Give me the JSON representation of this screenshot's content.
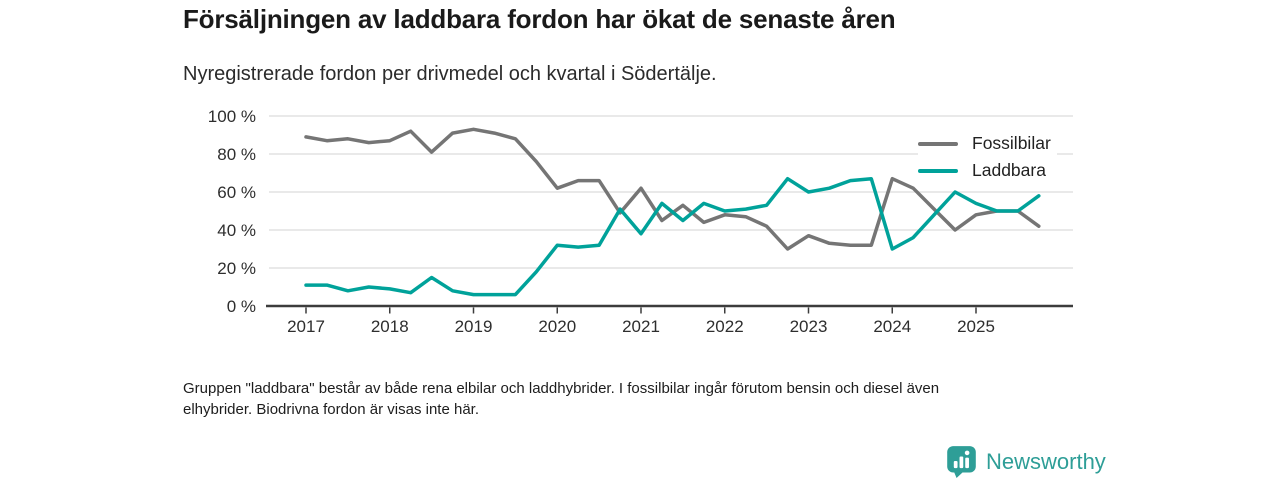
{
  "page": {
    "title": "Försäljningen av laddbara fordon har ökat de senaste åren",
    "subtitle": "Nyregistrerade fordon per drivmedel och kvartal i Södertälje.",
    "footnote_line1": "Gruppen \"laddbara\" består av både rena elbilar och laddhybrider. I fossilbilar ingår förutom bensin och diesel även",
    "footnote_line2": "elhybrider. Biodrivna fordon är visas inte här.",
    "brand": "Newsworthy"
  },
  "colors": {
    "fossil": "#757575",
    "laddbara": "#00a29a",
    "axis": "#3c3c3c",
    "grid": "#dcdcdc",
    "brand": "#2e9e97",
    "text": "#2e2e2e"
  },
  "chart_data": {
    "type": "line",
    "title": "Försäljningen av laddbara fordon har ökat de senaste åren",
    "subtitle": "Nyregistrerade fordon per drivmedel och kvartal i Södertälje.",
    "x_unit": "quarter",
    "x": [
      "2017-Q1",
      "2017-Q2",
      "2017-Q3",
      "2017-Q4",
      "2018-Q1",
      "2018-Q2",
      "2018-Q3",
      "2018-Q4",
      "2019-Q1",
      "2019-Q2",
      "2019-Q3",
      "2019-Q4",
      "2020-Q1",
      "2020-Q2",
      "2020-Q3",
      "2020-Q4",
      "2021-Q1",
      "2021-Q2",
      "2021-Q3",
      "2021-Q4",
      "2022-Q1",
      "2022-Q2",
      "2022-Q3",
      "2022-Q4",
      "2023-Q1",
      "2023-Q2",
      "2023-Q3",
      "2023-Q4",
      "2024-Q1",
      "2024-Q2",
      "2024-Q3",
      "2024-Q4",
      "2025-Q1",
      "2025-Q2",
      "2025-Q3",
      "2025-Q4"
    ],
    "x_tick_labels": [
      "2017",
      "2018",
      "2019",
      "2020",
      "2021",
      "2022",
      "2023",
      "2024",
      "2025"
    ],
    "y_tick_values": [
      0,
      20,
      40,
      60,
      80,
      100
    ],
    "y_tick_labels": [
      "0 %",
      "20 %",
      "40 %",
      "60 %",
      "80 %",
      "100 %"
    ],
    "ylim": [
      0,
      100
    ],
    "ylabel_unit": "%",
    "grid": "horizontal",
    "legend_position": "top-right",
    "series": [
      {
        "name": "Fossilbilar",
        "color": "#757575",
        "values": [
          89,
          87,
          88,
          86,
          87,
          92,
          81,
          91,
          93,
          91,
          88,
          76,
          62,
          66,
          66,
          49,
          62,
          45,
          53,
          44,
          48,
          47,
          42,
          30,
          37,
          33,
          32,
          32,
          67,
          62,
          51,
          40,
          48,
          50,
          50,
          42
        ]
      },
      {
        "name": "Laddbara",
        "color": "#00a29a",
        "values": [
          11,
          11,
          8,
          10,
          9,
          7,
          15,
          8,
          6,
          6,
          6,
          18,
          32,
          31,
          32,
          51,
          38,
          54,
          45,
          54,
          50,
          51,
          53,
          67,
          60,
          62,
          66,
          67,
          30,
          36,
          48,
          60,
          54,
          50,
          50,
          58
        ]
      }
    ]
  }
}
